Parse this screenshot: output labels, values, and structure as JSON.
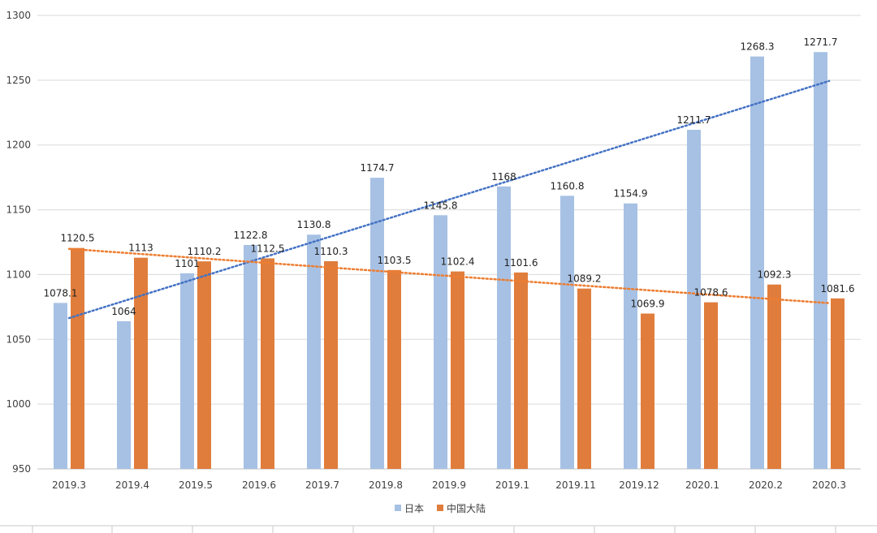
{
  "chart_data": {
    "type": "bar",
    "categories": [
      "2019.3",
      "2019.4",
      "2019.5",
      "2019.6",
      "2019.7",
      "2019.8",
      "2019.9",
      "2019.1",
      "2019.11",
      "2019.12",
      "2020.1",
      "2020.2",
      "2020.3"
    ],
    "series": [
      {
        "name": "日本",
        "color": "#a7c1e4",
        "trend_color": "#4472c4",
        "values": [
          1078.1,
          1064,
          1101,
          1122.8,
          1130.8,
          1174.7,
          1145.8,
          1168,
          1160.8,
          1154.9,
          1211.7,
          1268.3,
          1271.7
        ],
        "labels": [
          "1078.1",
          "1064",
          "1101",
          "1122.8",
          "1130.8",
          "1174.7",
          "1145.8",
          "1168",
          "1160.8",
          "1154.9",
          "1211.7",
          "1268.3",
          "1271.7"
        ]
      },
      {
        "name": "中国大陆",
        "color": "#e07d3c",
        "trend_color": "#ed7d31",
        "values": [
          1120.5,
          1113,
          1110.2,
          1112.5,
          1110.3,
          1103.5,
          1102.4,
          1101.6,
          1089.2,
          1069.9,
          1078.6,
          1092.3,
          1081.6
        ],
        "labels": [
          "1120.5",
          "1113",
          "1110.2",
          "1112.5",
          "1110.3",
          "1103.5",
          "1102.4",
          "1101.6",
          "1089.2",
          "1069.9",
          "1078.6",
          "1092.3",
          "1081.6"
        ]
      }
    ],
    "trendlines": "linear, dotted",
    "ylim": [
      950,
      1300
    ],
    "yticks": [
      "950",
      "1000",
      "1050",
      "1100",
      "1150",
      "1200",
      "1250",
      "1300"
    ],
    "grid": true,
    "legend_position": "bottom"
  }
}
